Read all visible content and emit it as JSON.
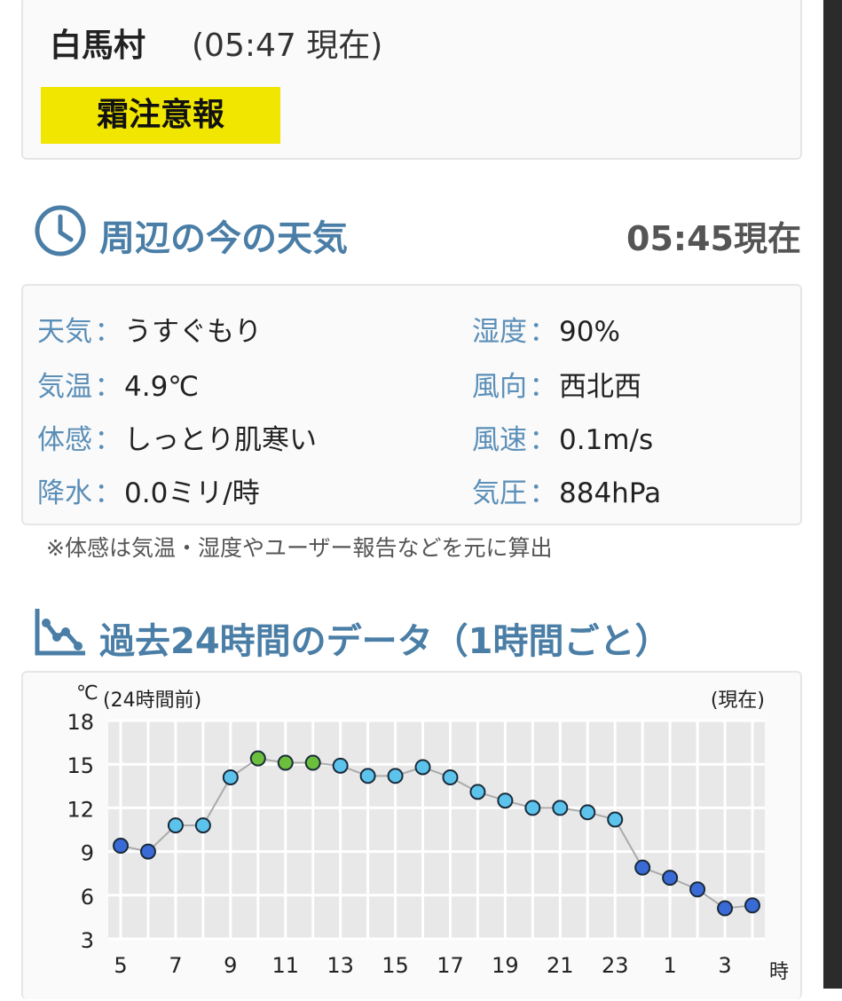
{
  "header": {
    "town": "白馬村",
    "as_of": "(05:47 現在)",
    "alert": "霜注意報"
  },
  "now": {
    "title": "周辺の今の天気",
    "time": "05:45現在",
    "rows_left": [
      {
        "label": "天気",
        "value": "うすぐもり"
      },
      {
        "label": "気温",
        "value": "4.9℃"
      },
      {
        "label": "体感",
        "value": "しっとり肌寒い"
      },
      {
        "label": "降水",
        "value": "0.0ミリ/時"
      }
    ],
    "rows_right": [
      {
        "label": "湿度",
        "value": "90%"
      },
      {
        "label": "風向",
        "value": "西北西"
      },
      {
        "label": "風速",
        "value": "0.1m/s"
      },
      {
        "label": "気圧",
        "value": "884hPa"
      }
    ],
    "separator": "：",
    "footnote": "※体感は気温・湿度やユーザー報告などを元に算出"
  },
  "past": {
    "title": "過去24時間のデータ（1時間ごと）"
  },
  "colors": {
    "accent": "#4a7ea6",
    "alert_bg": "#f0e600",
    "point_blue": "#3a6ad6",
    "point_cyan": "#5cc4ec",
    "point_green": "#6cbf3c"
  },
  "chart_data": {
    "type": "line",
    "ylabel": "℃",
    "left_note": "(24時間前)",
    "right_note": "(現在)",
    "xunit": "時",
    "ylim": [
      3,
      18
    ],
    "yticks": [
      18,
      15,
      12,
      9,
      6,
      3
    ],
    "x": [
      5,
      6,
      7,
      8,
      9,
      10,
      11,
      12,
      13,
      14,
      15,
      16,
      17,
      18,
      19,
      20,
      21,
      22,
      23,
      0,
      1,
      2,
      3,
      4
    ],
    "xtick_labels": [
      "5",
      "7",
      "9",
      "11",
      "13",
      "15",
      "17",
      "19",
      "21",
      "23",
      "1",
      "3"
    ],
    "values": [
      9.4,
      9.0,
      10.8,
      10.8,
      14.1,
      15.4,
      15.1,
      15.1,
      14.9,
      14.2,
      14.2,
      14.8,
      14.1,
      13.1,
      12.5,
      12.0,
      12.0,
      11.7,
      11.2,
      7.9,
      7.2,
      6.4,
      5.1,
      5.3
    ],
    "point_colors": [
      "blue",
      "blue",
      "cyan",
      "cyan",
      "cyan",
      "green",
      "green",
      "green",
      "cyan",
      "cyan",
      "cyan",
      "cyan",
      "cyan",
      "cyan",
      "cyan",
      "cyan",
      "cyan",
      "cyan",
      "cyan",
      "blue",
      "blue",
      "blue",
      "blue",
      "blue"
    ]
  }
}
